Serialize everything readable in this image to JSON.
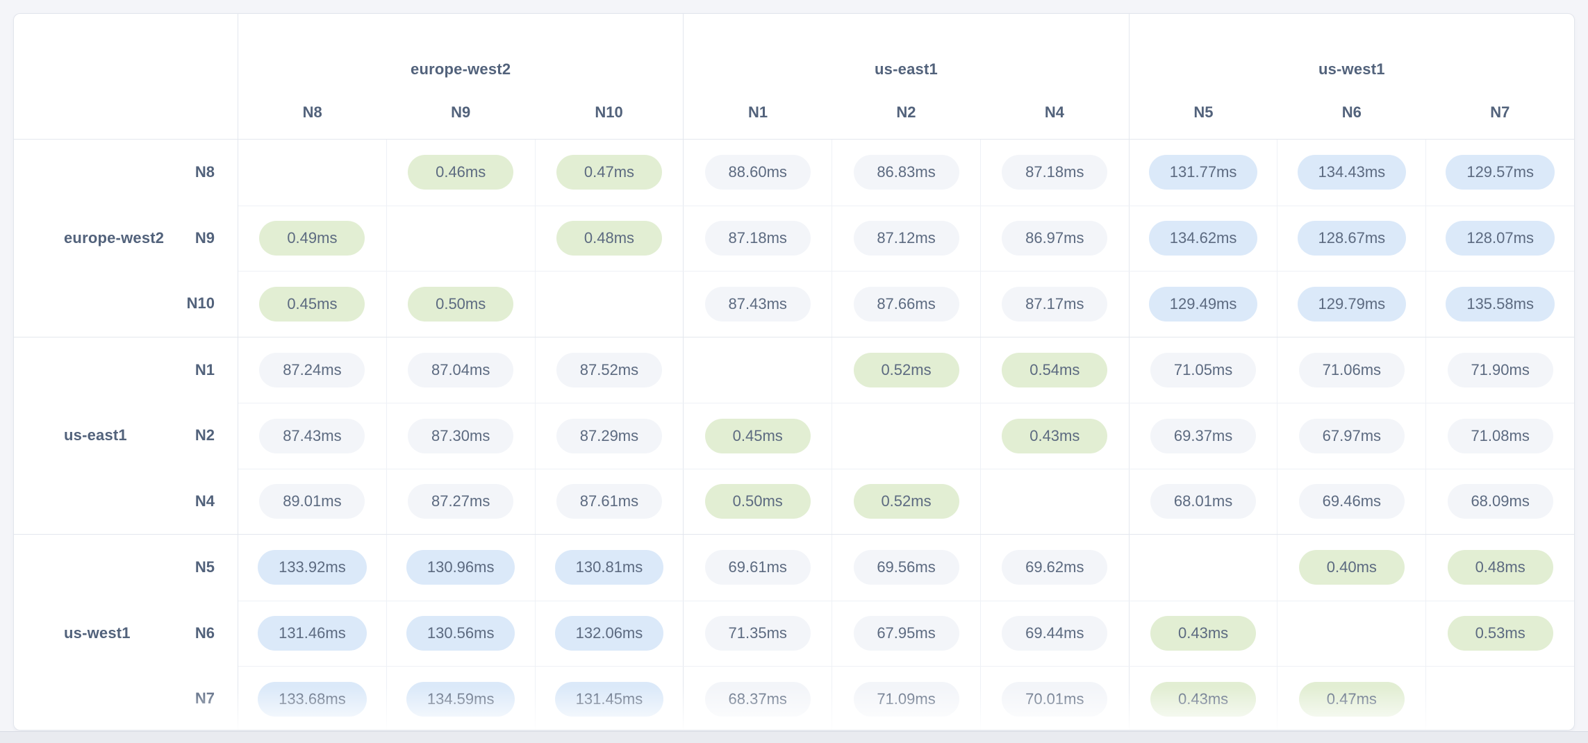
{
  "matrix": {
    "unit": "ms",
    "column_groups": [
      {
        "region": "europe-west2",
        "nodes": [
          "N8",
          "N9",
          "N10"
        ]
      },
      {
        "region": "us-east1",
        "nodes": [
          "N1",
          "N2",
          "N4"
        ]
      },
      {
        "region": "us-west1",
        "nodes": [
          "N5",
          "N6",
          "N7"
        ]
      }
    ],
    "row_groups": [
      {
        "region": "europe-west2",
        "rows": [
          {
            "node": "N8",
            "values_ms": [
              null,
              0.46,
              0.47,
              88.6,
              86.83,
              87.18,
              131.77,
              134.43,
              129.57
            ]
          },
          {
            "node": "N9",
            "values_ms": [
              0.49,
              null,
              0.48,
              87.18,
              87.12,
              86.97,
              134.62,
              128.67,
              128.07
            ]
          },
          {
            "node": "N10",
            "values_ms": [
              0.45,
              0.5,
              null,
              87.43,
              87.66,
              87.17,
              129.49,
              129.79,
              135.58
            ]
          }
        ]
      },
      {
        "region": "us-east1",
        "rows": [
          {
            "node": "N1",
            "values_ms": [
              87.24,
              87.04,
              87.52,
              null,
              0.52,
              0.54,
              71.05,
              71.06,
              71.9
            ]
          },
          {
            "node": "N2",
            "values_ms": [
              87.43,
              87.3,
              87.29,
              0.45,
              null,
              0.43,
              69.37,
              67.97,
              71.08
            ]
          },
          {
            "node": "N4",
            "values_ms": [
              89.01,
              87.27,
              87.61,
              0.5,
              0.52,
              null,
              68.01,
              69.46,
              68.09
            ]
          }
        ]
      },
      {
        "region": "us-west1",
        "rows": [
          {
            "node": "N5",
            "values_ms": [
              133.92,
              130.96,
              130.81,
              69.61,
              69.56,
              69.62,
              null,
              0.4,
              0.48
            ]
          },
          {
            "node": "N6",
            "values_ms": [
              131.46,
              130.56,
              132.06,
              71.35,
              67.95,
              69.44,
              0.43,
              null,
              0.53
            ]
          },
          {
            "node": "N7",
            "values_ms": [
              133.68,
              134.59,
              131.45,
              68.37,
              71.09,
              70.01,
              0.43,
              0.47,
              null
            ]
          }
        ]
      }
    ],
    "colors": {
      "low_latency_pill": "#e2eed3",
      "mid_latency_pill": "#f3f5f9",
      "high_latency_pill": "#dbe9f9",
      "label_text": "#52627b",
      "value_text": "#5c6a80"
    },
    "color_thresholds": {
      "low_below_ms": 1,
      "mid_below_ms": 100
    }
  },
  "chart_data": {
    "type": "heatmap",
    "title": "",
    "x": [
      "N8",
      "N9",
      "N10",
      "N1",
      "N2",
      "N4",
      "N5",
      "N6",
      "N7"
    ],
    "y": [
      "N8",
      "N9",
      "N10",
      "N1",
      "N2",
      "N4",
      "N5",
      "N6",
      "N7"
    ],
    "x_region_groups": [
      {
        "label": "europe-west2",
        "members": [
          "N8",
          "N9",
          "N10"
        ]
      },
      {
        "label": "us-east1",
        "members": [
          "N1",
          "N2",
          "N4"
        ]
      },
      {
        "label": "us-west1",
        "members": [
          "N5",
          "N6",
          "N7"
        ]
      }
    ],
    "unit": "ms",
    "values": [
      [
        null,
        0.46,
        0.47,
        88.6,
        86.83,
        87.18,
        131.77,
        134.43,
        129.57
      ],
      [
        0.49,
        null,
        0.48,
        87.18,
        87.12,
        86.97,
        134.62,
        128.67,
        128.07
      ],
      [
        0.45,
        0.5,
        null,
        87.43,
        87.66,
        87.17,
        129.49,
        129.79,
        135.58
      ],
      [
        87.24,
        87.04,
        87.52,
        null,
        0.52,
        0.54,
        71.05,
        71.06,
        71.9
      ],
      [
        87.43,
        87.3,
        87.29,
        0.45,
        null,
        0.43,
        69.37,
        67.97,
        71.08
      ],
      [
        89.01,
        87.27,
        87.61,
        0.5,
        0.52,
        null,
        68.01,
        69.46,
        68.09
      ],
      [
        133.92,
        130.96,
        130.81,
        69.61,
        69.56,
        69.62,
        null,
        0.4,
        0.48
      ],
      [
        131.46,
        130.56,
        132.06,
        71.35,
        67.95,
        69.44,
        0.43,
        null,
        0.53
      ],
      [
        133.68,
        134.59,
        131.45,
        68.37,
        71.09,
        70.01,
        0.43,
        0.47,
        null
      ]
    ],
    "legend_position": "none",
    "grid": true
  }
}
